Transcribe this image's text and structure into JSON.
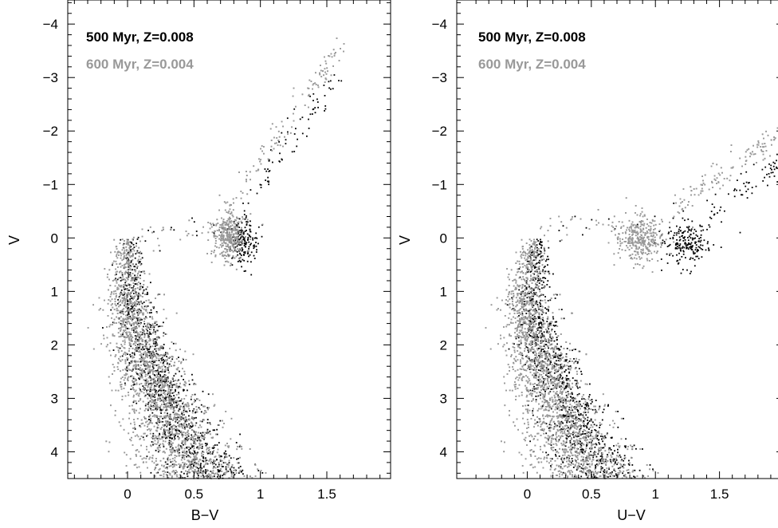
{
  "chart_data": [
    {
      "type": "scatter",
      "xlabel": "B−V",
      "ylabel": "V",
      "xlim": [
        -0.45,
        1.98
      ],
      "ylim": [
        4.5,
        -4.45
      ],
      "y_inverted": true,
      "xticks": [
        0,
        0.5,
        1,
        1.5
      ],
      "xtick_labels": [
        "0",
        "0.5",
        "1",
        "1.5"
      ],
      "yticks": [
        -4,
        -3,
        -2,
        -1,
        0,
        1,
        2,
        3,
        4
      ],
      "ytick_labels": [
        "−4",
        "−3",
        "−2",
        "−1",
        "0",
        "1",
        "2",
        "3",
        "4"
      ],
      "legend_placement": "top-left",
      "series": [
        {
          "name": "500 Myr, Z=0.008",
          "color": "#000000",
          "point_count": 1400,
          "main_sequence": [
            [
              0.02,
              0.2
            ],
            [
              0.04,
              1.0
            ],
            [
              0.12,
              2.0
            ],
            [
              0.3,
              3.0
            ],
            [
              0.5,
              4.0
            ],
            [
              0.6,
              4.4
            ]
          ],
          "clump_center": [
            0.87,
            0.05
          ],
          "giant_branch": [
            [
              0.82,
              -0.2
            ],
            [
              1.0,
              -1.0
            ],
            [
              1.15,
              -1.5
            ],
            [
              1.3,
              -2.1
            ],
            [
              1.47,
              -2.6
            ],
            [
              1.6,
              -3.0
            ]
          ]
        },
        {
          "name": "600 Myr, Z=0.004",
          "color": "#999999",
          "point_count": 5000,
          "main_sequence": [
            [
              -0.01,
              0.2
            ],
            [
              0.0,
              1.0
            ],
            [
              0.08,
              2.0
            ],
            [
              0.25,
              3.0
            ],
            [
              0.42,
              4.0
            ],
            [
              0.52,
              4.4
            ]
          ],
          "clump_center": [
            0.76,
            -0.05
          ],
          "giant_branch": [
            [
              0.72,
              -0.3
            ],
            [
              0.92,
              -1.1
            ],
            [
              1.1,
              -1.8
            ],
            [
              1.3,
              -2.5
            ],
            [
              1.47,
              -3.1
            ],
            [
              1.62,
              -3.7
            ]
          ]
        }
      ]
    },
    {
      "type": "scatter",
      "xlabel": "U−V",
      "ylabel": "V",
      "xlim": [
        -0.55,
        2.0
      ],
      "ylim": [
        4.5,
        -4.45
      ],
      "y_inverted": true,
      "xticks": [
        0,
        0.5,
        1,
        1.5
      ],
      "xtick_labels": [
        "0",
        "0.5",
        "1",
        "1.5"
      ],
      "yticks": [
        -4,
        -3,
        -2,
        -1,
        0,
        1,
        2,
        3,
        4
      ],
      "ytick_labels": [
        "−4",
        "−3",
        "−2",
        "−1",
        "0",
        "1",
        "2",
        "3",
        "4"
      ],
      "legend_placement": "top-left",
      "series": [
        {
          "name": "500 Myr, Z=0.008",
          "color": "#000000",
          "point_count": 1400,
          "main_sequence": [
            [
              0.1,
              0.0
            ],
            [
              0.05,
              1.0
            ],
            [
              0.12,
              2.0
            ],
            [
              0.3,
              3.0
            ],
            [
              0.5,
              4.0
            ],
            [
              0.62,
              4.4
            ]
          ],
          "clump_center": [
            1.25,
            0.1
          ],
          "giant_branch": [
            [
              1.4,
              -0.4
            ],
            [
              1.65,
              -0.9
            ],
            [
              1.85,
              -1.2
            ],
            [
              2.0,
              -1.4
            ]
          ]
        },
        {
          "name": "600 Myr, Z=0.004",
          "color": "#999999",
          "point_count": 5000,
          "main_sequence": [
            [
              0.05,
              0.0
            ],
            [
              -0.02,
              1.0
            ],
            [
              0.05,
              2.0
            ],
            [
              0.2,
              3.0
            ],
            [
              0.38,
              4.0
            ],
            [
              0.5,
              4.4
            ]
          ],
          "clump_center": [
            0.88,
            0.0
          ],
          "giant_branch": [
            [
              1.15,
              -0.5
            ],
            [
              1.4,
              -1.0
            ],
            [
              1.7,
              -1.5
            ],
            [
              2.0,
              -2.0
            ]
          ]
        }
      ]
    }
  ]
}
